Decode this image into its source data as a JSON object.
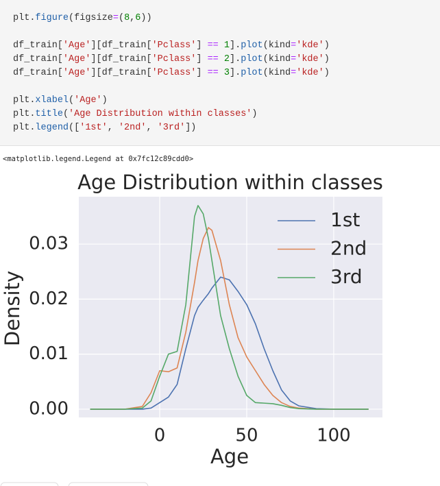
{
  "code": [
    [
      {
        "text": "plt",
        "color": "#333333"
      },
      {
        "text": ".",
        "color": "#333333"
      },
      {
        "text": "figure",
        "color": "#2060a8"
      },
      {
        "text": "(figsize",
        "color": "#333333"
      },
      {
        "text": "=",
        "color": "#aa22ff"
      },
      {
        "text": "(",
        "color": "#333333"
      },
      {
        "text": "8",
        "color": "#008000"
      },
      {
        "text": ",",
        "color": "#333333"
      },
      {
        "text": "6",
        "color": "#008000"
      },
      {
        "text": "))",
        "color": "#333333"
      }
    ],
    [],
    [
      {
        "text": "df_train[",
        "color": "#333333"
      },
      {
        "text": "'Age'",
        "color": "#ba2121"
      },
      {
        "text": "][df_train[",
        "color": "#333333"
      },
      {
        "text": "'Pclass'",
        "color": "#ba2121"
      },
      {
        "text": "] ",
        "color": "#333333"
      },
      {
        "text": "==",
        "color": "#aa22ff"
      },
      {
        "text": " ",
        "color": "#333333"
      },
      {
        "text": "1",
        "color": "#008000"
      },
      {
        "text": "].",
        "color": "#333333"
      },
      {
        "text": "plot",
        "color": "#2060a8"
      },
      {
        "text": "(kind",
        "color": "#333333"
      },
      {
        "text": "=",
        "color": "#aa22ff"
      },
      {
        "text": "'kde'",
        "color": "#ba2121"
      },
      {
        "text": ")",
        "color": "#333333"
      }
    ],
    [
      {
        "text": "df_train[",
        "color": "#333333"
      },
      {
        "text": "'Age'",
        "color": "#ba2121"
      },
      {
        "text": "][df_train[",
        "color": "#333333"
      },
      {
        "text": "'Pclass'",
        "color": "#ba2121"
      },
      {
        "text": "] ",
        "color": "#333333"
      },
      {
        "text": "==",
        "color": "#aa22ff"
      },
      {
        "text": " ",
        "color": "#333333"
      },
      {
        "text": "2",
        "color": "#008000"
      },
      {
        "text": "].",
        "color": "#333333"
      },
      {
        "text": "plot",
        "color": "#2060a8"
      },
      {
        "text": "(kind",
        "color": "#333333"
      },
      {
        "text": "=",
        "color": "#aa22ff"
      },
      {
        "text": "'kde'",
        "color": "#ba2121"
      },
      {
        "text": ")",
        "color": "#333333"
      }
    ],
    [
      {
        "text": "df_train[",
        "color": "#333333"
      },
      {
        "text": "'Age'",
        "color": "#ba2121"
      },
      {
        "text": "][df_train[",
        "color": "#333333"
      },
      {
        "text": "'Pclass'",
        "color": "#ba2121"
      },
      {
        "text": "] ",
        "color": "#333333"
      },
      {
        "text": "==",
        "color": "#aa22ff"
      },
      {
        "text": " ",
        "color": "#333333"
      },
      {
        "text": "3",
        "color": "#008000"
      },
      {
        "text": "].",
        "color": "#333333"
      },
      {
        "text": "plot",
        "color": "#2060a8"
      },
      {
        "text": "(kind",
        "color": "#333333"
      },
      {
        "text": "=",
        "color": "#aa22ff"
      },
      {
        "text": "'kde'",
        "color": "#ba2121"
      },
      {
        "text": ")",
        "color": "#333333"
      }
    ],
    [],
    [
      {
        "text": "plt",
        "color": "#333333"
      },
      {
        "text": ".",
        "color": "#333333"
      },
      {
        "text": "xlabel",
        "color": "#2060a8"
      },
      {
        "text": "(",
        "color": "#333333"
      },
      {
        "text": "'Age'",
        "color": "#ba2121"
      },
      {
        "text": ")",
        "color": "#333333"
      }
    ],
    [
      {
        "text": "plt",
        "color": "#333333"
      },
      {
        "text": ".",
        "color": "#333333"
      },
      {
        "text": "title",
        "color": "#2060a8"
      },
      {
        "text": "(",
        "color": "#333333"
      },
      {
        "text": "'Age Distribution within classes'",
        "color": "#ba2121"
      },
      {
        "text": ")",
        "color": "#333333"
      }
    ],
    [
      {
        "text": "plt",
        "color": "#333333"
      },
      {
        "text": ".",
        "color": "#333333"
      },
      {
        "text": "legend",
        "color": "#2060a8"
      },
      {
        "text": "([",
        "color": "#333333"
      },
      {
        "text": "'1st'",
        "color": "#ba2121"
      },
      {
        "text": ", ",
        "color": "#333333"
      },
      {
        "text": "'2nd'",
        "color": "#ba2121"
      },
      {
        "text": ", ",
        "color": "#333333"
      },
      {
        "text": "'3rd'",
        "color": "#ba2121"
      },
      {
        "text": "])",
        "color": "#333333"
      }
    ]
  ],
  "output": "<matplotlib.legend.Legend at 0x7fc12c89cdd0>",
  "chart_data": {
    "type": "line",
    "title": "Age Distribution within classes",
    "xlabel": "Age",
    "ylabel": "Density",
    "x": [
      -40,
      -30,
      -20,
      -10,
      -5,
      0,
      5,
      10,
      15,
      20,
      22,
      25,
      28,
      30,
      35,
      40,
      45,
      50,
      55,
      60,
      65,
      70,
      75,
      80,
      90,
      100,
      110,
      120
    ],
    "series": [
      {
        "name": "1st",
        "color": "#4c72b0",
        "values": [
          0,
          0,
          0,
          0,
          0.0002,
          0.0012,
          0.0022,
          0.0045,
          0.011,
          0.017,
          0.0185,
          0.0198,
          0.021,
          0.022,
          0.024,
          0.0235,
          0.0214,
          0.019,
          0.0155,
          0.011,
          0.007,
          0.0035,
          0.0015,
          0.0006,
          0.0001,
          0,
          0,
          0
        ]
      },
      {
        "name": "2nd",
        "color": "#dd8452",
        "values": [
          0,
          0,
          0,
          0.0005,
          0.003,
          0.007,
          0.0068,
          0.0075,
          0.014,
          0.023,
          0.027,
          0.031,
          0.033,
          0.0325,
          0.027,
          0.019,
          0.013,
          0.0095,
          0.007,
          0.0045,
          0.0025,
          0.0012,
          0.0005,
          0.0002,
          0,
          0,
          0,
          0
        ]
      },
      {
        "name": "3rd",
        "color": "#55a868",
        "values": [
          0,
          0,
          0,
          0.0002,
          0.0015,
          0.006,
          0.01,
          0.0105,
          0.019,
          0.035,
          0.037,
          0.0355,
          0.031,
          0.027,
          0.017,
          0.011,
          0.006,
          0.0025,
          0.0012,
          0.0011,
          0.001,
          0.0007,
          0.0003,
          0.0001,
          0,
          0,
          0,
          0
        ]
      }
    ],
    "xlim": [
      -46.5,
      128
    ],
    "ylim": [
      -0.0015,
      0.0386
    ],
    "xticks": [
      0,
      50,
      100
    ],
    "yticks": [
      {
        "value": 0,
        "label": "0.00"
      },
      {
        "value": 0.01,
        "label": "0.01"
      },
      {
        "value": 0.02,
        "label": "0.02"
      },
      {
        "value": 0.03,
        "label": "0.03"
      }
    ],
    "grid": true,
    "legend": "upper right"
  }
}
